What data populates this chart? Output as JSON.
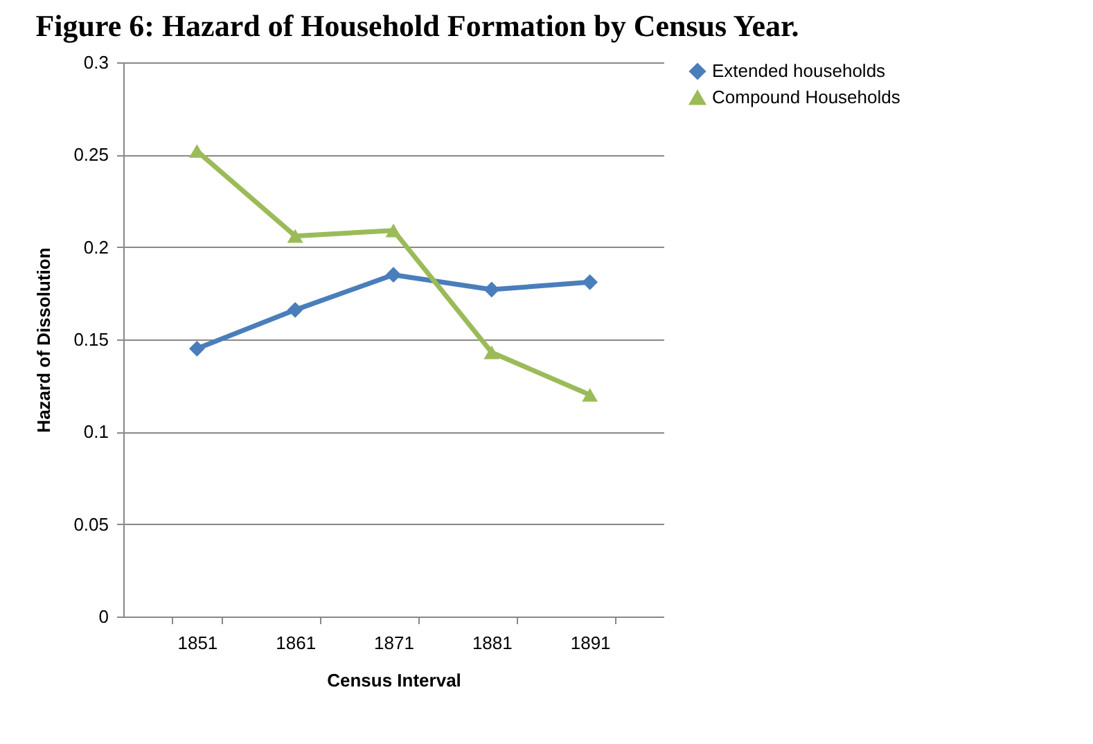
{
  "chart_data": {
    "type": "line",
    "title": "Figure 6: Hazard of Household Formation by Census Year.",
    "xlabel": "Census Interval",
    "ylabel": "Hazard of Dissolution",
    "categories": [
      "1851",
      "1861",
      "1871",
      "1881",
      "1891"
    ],
    "series": [
      {
        "name": "Extended households",
        "color": "#4a7ebb",
        "marker": "diamond",
        "values": [
          0.145,
          0.166,
          0.185,
          0.177,
          0.181
        ]
      },
      {
        "name": "Compound Households",
        "color": "#9bbb59",
        "marker": "triangle",
        "values": [
          0.252,
          0.206,
          0.209,
          0.143,
          0.12
        ]
      }
    ],
    "ylim": [
      0,
      0.3
    ],
    "yticks": [
      0,
      0.05,
      0.1,
      0.15,
      0.2,
      0.25,
      0.3
    ],
    "grid": "y",
    "legend": "right"
  }
}
